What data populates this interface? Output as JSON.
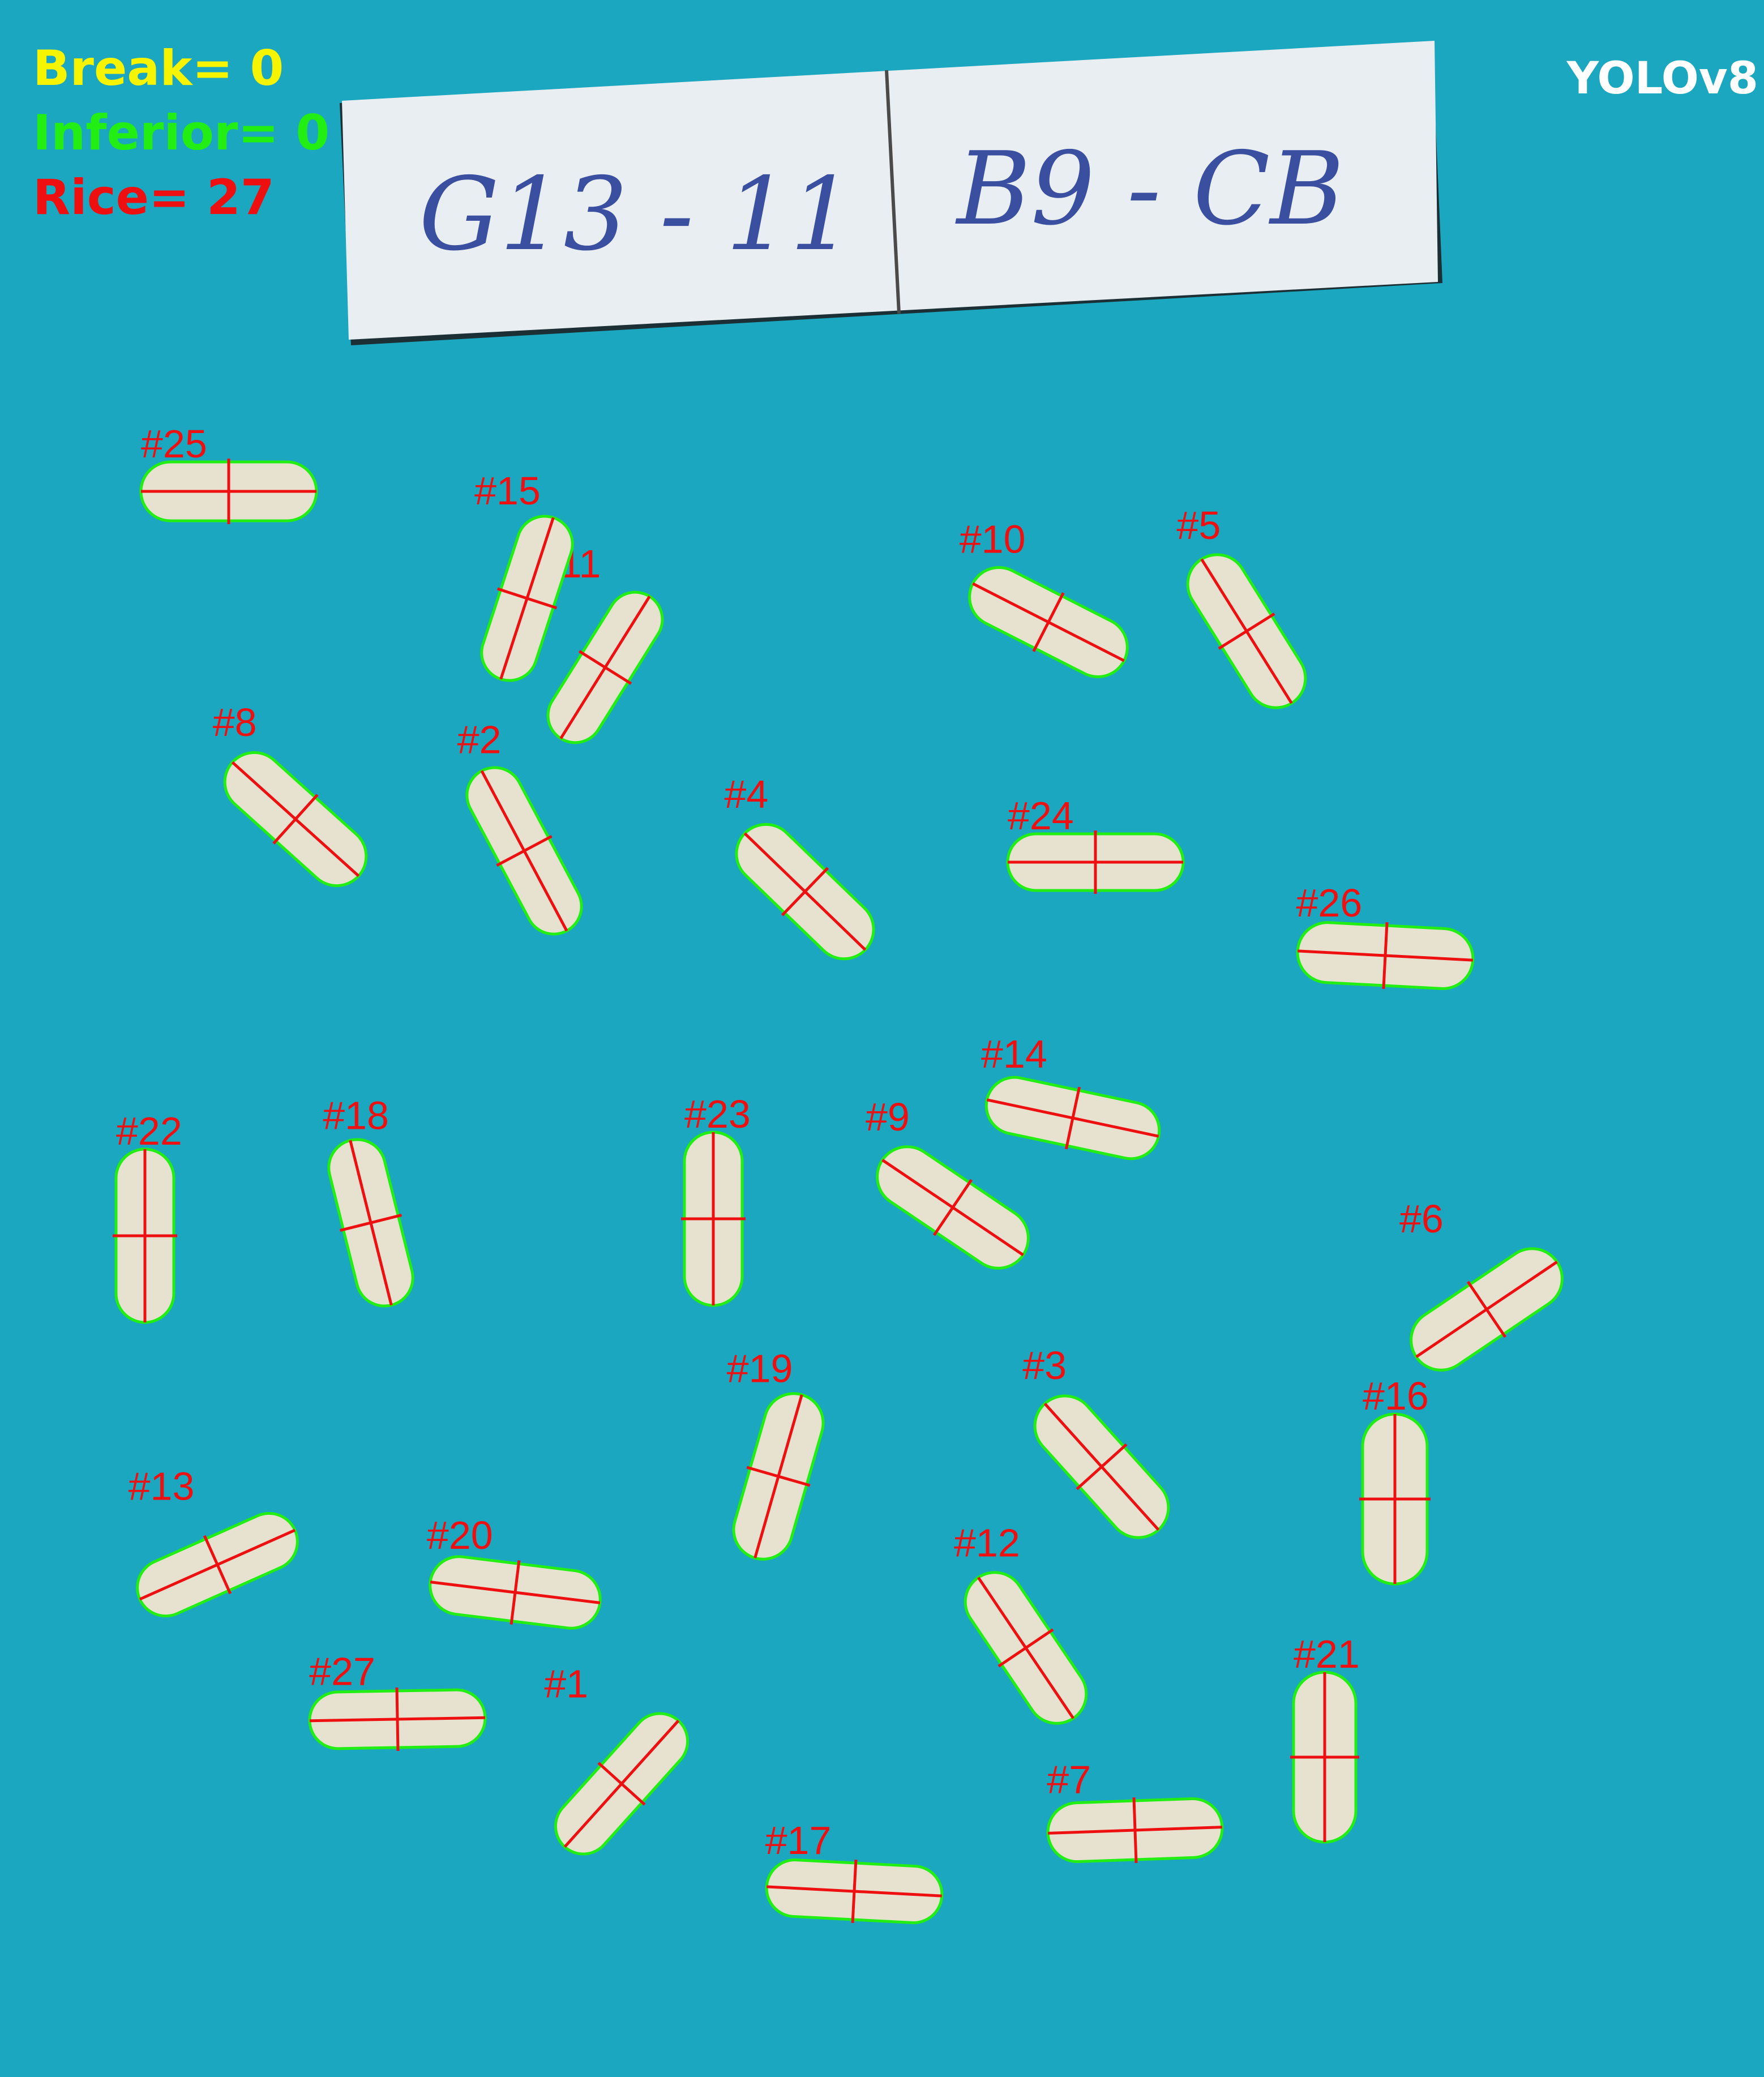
{
  "counts": {
    "break": "Break= 0",
    "inferior": "Inferior= 0",
    "rice": "Rice= 27"
  },
  "model": "YOLOv8",
  "sample_card": {
    "left_code": "G13 - 11",
    "right_code": "B9 - CB"
  },
  "colors": {
    "background": "#1aa7bf",
    "grain": "#e7e1cf",
    "outline": "#22ee14",
    "axis": "#ee1010",
    "label": "#ee1010"
  },
  "grains": [
    {
      "id": "#1"
    },
    {
      "id": "#2"
    },
    {
      "id": "#3"
    },
    {
      "id": "#4"
    },
    {
      "id": "#5"
    },
    {
      "id": "#6"
    },
    {
      "id": "#7"
    },
    {
      "id": "#8"
    },
    {
      "id": "#9"
    },
    {
      "id": "#10"
    },
    {
      "id": "#11"
    },
    {
      "id": "#12"
    },
    {
      "id": "#13"
    },
    {
      "id": "#14"
    },
    {
      "id": "#15"
    },
    {
      "id": "#16"
    },
    {
      "id": "#17"
    },
    {
      "id": "#18"
    },
    {
      "id": "#19"
    },
    {
      "id": "#20"
    },
    {
      "id": "#21"
    },
    {
      "id": "#22"
    },
    {
      "id": "#23"
    },
    {
      "id": "#24"
    },
    {
      "id": "#25"
    },
    {
      "id": "#26"
    },
    {
      "id": "#27"
    }
  ]
}
